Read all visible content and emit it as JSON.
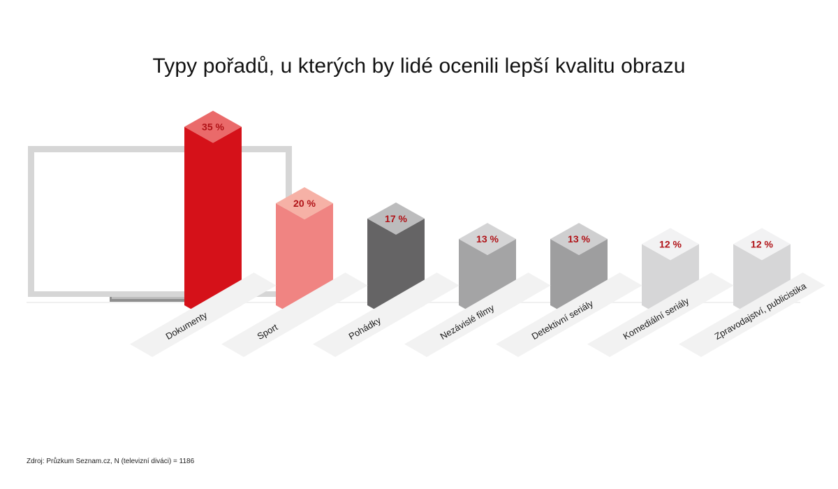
{
  "title": "Typy pořadů, u kterých by lidé ocenili lepší kvalitu obrazu",
  "source": "Zdroj: Průzkum Seznam.cz, N (televizní diváci) = 1186",
  "chart_data": {
    "type": "bar",
    "title": "Typy pořadů, u kterých by lidé ocenili lepší kvalitu obrazu",
    "xlabel": "",
    "ylabel": "",
    "unit": "%",
    "categories": [
      "Dokumenty",
      "Sport",
      "Pohádky",
      "Nezávislé filmy",
      "Detektivní seriály",
      "Komediální seriály",
      "Zpravodajství, publicistika"
    ],
    "values": [
      35,
      20,
      17,
      13,
      13,
      12,
      12
    ],
    "value_labels": [
      "35 %",
      "20 %",
      "17 %",
      "13 %",
      "13 %",
      "12 %",
      "12 %"
    ],
    "colors": [
      {
        "front": "#d51119",
        "top": "#ea6a6a"
      },
      {
        "front": "#f08482",
        "top": "#f6b1a6"
      },
      {
        "front": "#656465",
        "top": "#bcbcbd"
      },
      {
        "front": "#a4a4a5",
        "top": "#d4d4d5"
      },
      {
        "front": "#9e9e9f",
        "top": "#cfcfd0"
      },
      {
        "front": "#d6d6d7",
        "top": "#f2f2f3"
      },
      {
        "front": "#d6d6d7",
        "top": "#f2f2f3"
      }
    ],
    "label_color": "#b01217",
    "grid": false,
    "legend": "none"
  }
}
